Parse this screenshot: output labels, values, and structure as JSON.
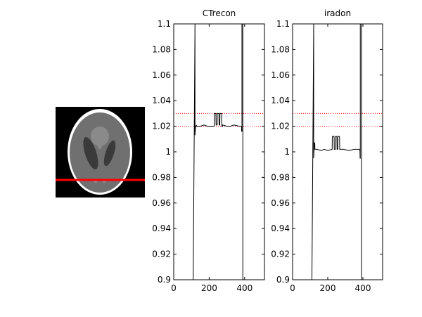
{
  "phantom": {
    "background_color": "#000000",
    "profile_line_color": "#ff0000",
    "outer_ring_color": "#ffffff"
  },
  "chart_data": [
    {
      "type": "line",
      "title": "CTrecon",
      "xlim": [
        0,
        512
      ],
      "ylim": [
        0.9,
        1.1
      ],
      "xticks": [
        "0",
        "200",
        "400"
      ],
      "xtick_values": [
        0,
        200,
        400
      ],
      "yticks": [
        "0.9",
        "0.92",
        "0.94",
        "0.96",
        "0.98",
        "1",
        "1.02",
        "1.04",
        "1.06",
        "1.08",
        "1.1"
      ],
      "ytick_values": [
        0.9,
        0.92,
        0.94,
        0.96,
        0.98,
        1.0,
        1.02,
        1.04,
        1.06,
        1.08,
        1.1
      ],
      "reference_lines": [
        1.02,
        1.03
      ],
      "reference_line_color": "#ff0000",
      "series": [
        {
          "color": "#000000",
          "x": [
            110,
            110,
            120,
            120,
            123,
            123,
            127,
            127,
            130,
            150,
            170,
            190,
            210,
            225,
            228,
            229,
            238,
            239,
            245,
            246,
            255,
            256,
            260,
            261,
            270,
            271,
            275,
            276,
            300,
            320,
            340,
            370,
            383,
            383,
            385,
            385,
            390,
            390
          ],
          "y": [
            0.9,
            0.9,
            1.1,
            1.013,
            1.019,
            1.02,
            1.02,
            1.021,
            1.02,
            1.02,
            1.021,
            1.02,
            1.02,
            1.02,
            1.02,
            1.03,
            1.03,
            1.021,
            1.021,
            1.03,
            1.03,
            1.021,
            1.021,
            1.03,
            1.03,
            1.02,
            1.02,
            1.021,
            1.02,
            1.02,
            1.021,
            1.02,
            1.02,
            1.016,
            1.016,
            1.1,
            1.1,
            0.9
          ]
        }
      ],
      "xlabel": "",
      "ylabel": ""
    },
    {
      "type": "line",
      "title": "iradon",
      "xlim": [
        0,
        512
      ],
      "ylim": [
        0.9,
        1.1
      ],
      "xticks": [
        "0",
        "200",
        "400"
      ],
      "xtick_values": [
        0,
        200,
        400
      ],
      "yticks": [
        "0.9",
        "0.92",
        "0.94",
        "0.96",
        "0.98",
        "1",
        "1.02",
        "1.04",
        "1.06",
        "1.08",
        "1.1"
      ],
      "ytick_values": [
        0.9,
        0.92,
        0.94,
        0.96,
        0.98,
        1.0,
        1.02,
        1.04,
        1.06,
        1.08,
        1.1
      ],
      "reference_lines": [
        1.02,
        1.03
      ],
      "reference_line_color": "#ff0000",
      "series": [
        {
          "color": "#000000",
          "x": [
            110,
            110,
            120,
            120,
            122,
            124,
            126,
            127,
            140,
            160,
            180,
            200,
            225,
            226,
            236,
            237,
            243,
            244,
            252,
            253,
            257,
            258,
            267,
            268,
            272,
            273,
            290,
            320,
            350,
            380,
            383,
            384,
            385,
            385,
            392,
            392
          ],
          "y": [
            0.9,
            0.9,
            1.1,
            0.995,
            1.001,
            1.007,
            1.007,
            1.002,
            1.002,
            1.001,
            1.002,
            1.001,
            1.002,
            1.012,
            1.012,
            1.002,
            1.002,
            1.012,
            1.012,
            1.002,
            1.002,
            1.012,
            1.012,
            1.002,
            1.002,
            1.002,
            1.002,
            1.001,
            1.002,
            1.002,
            1.001,
            0.995,
            0.995,
            1.1,
            1.1,
            0.9
          ]
        }
      ],
      "xlabel": "",
      "ylabel": ""
    }
  ]
}
